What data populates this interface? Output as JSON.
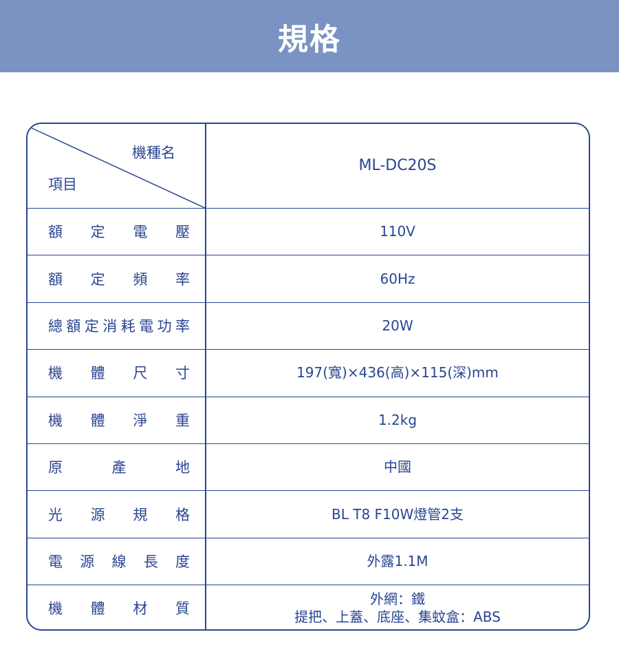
{
  "title": "規格",
  "header": {
    "item_label": "項目",
    "model_label": "機種名",
    "model": "ML-DC20S"
  },
  "rows": [
    {
      "label": "額定電壓",
      "value": "110V"
    },
    {
      "label": "額定頻率",
      "value": "60Hz"
    },
    {
      "label": "總額定消耗電功率",
      "value": "20W"
    },
    {
      "label": "機體尺寸",
      "value": "197(寬)×436(高)×115(深)mm"
    },
    {
      "label": "機體淨重",
      "value": "1.2kg"
    },
    {
      "label": "原產地",
      "value": "中國"
    },
    {
      "label": "光源規格",
      "value": "BL T8 F10W燈管2支"
    },
    {
      "label": "電源線長度",
      "value": "外露1.1M"
    },
    {
      "label": "機體材質",
      "value": "外網：鐵",
      "value2": "提把、上蓋、底座、集蚊盒：ABS"
    }
  ],
  "colors": {
    "banner": "#7b93c2",
    "border": "#2a4592",
    "text": "#2a4592"
  }
}
